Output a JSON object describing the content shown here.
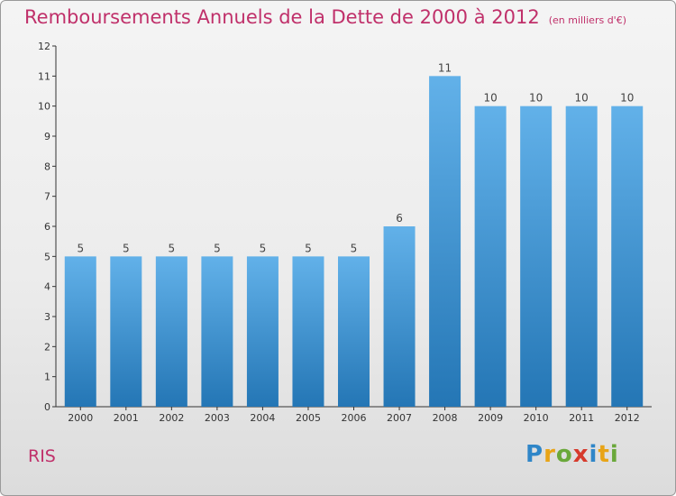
{
  "header": {
    "title": "Remboursements Annuels de la Dette de 2000 à 2012",
    "unit": "(en milliers d'€)"
  },
  "footer": {
    "city": "RIS",
    "logo_letters": [
      "P",
      "r",
      "o",
      "x",
      "i",
      "t",
      "i"
    ],
    "logo_colors": [
      "#2f86c8",
      "#e8a417",
      "#6aa83a",
      "#d63a2c",
      "#2f86c8",
      "#e8a417",
      "#6aa83a"
    ]
  },
  "colors": {
    "accent": "#c0306a",
    "bar_top": "#62b1e9",
    "bar_bottom": "#2476b5",
    "axis": "#333333"
  },
  "chart_data": {
    "type": "bar",
    "title": "Remboursements Annuels de la Dette de 2000 à 2012",
    "categories": [
      "2000",
      "2001",
      "2002",
      "2003",
      "2004",
      "2005",
      "2006",
      "2007",
      "2008",
      "2009",
      "2010",
      "2011",
      "2012"
    ],
    "values": [
      5,
      5,
      5,
      5,
      5,
      5,
      5,
      6,
      11,
      10,
      10,
      10,
      10
    ],
    "data_labels": [
      "5",
      "5",
      "5",
      "5",
      "5",
      "5",
      "5",
      "6",
      "11",
      "10",
      "10",
      "10",
      "10"
    ],
    "y_ticks": [
      0,
      1,
      2,
      3,
      4,
      5,
      6,
      7,
      8,
      9,
      10,
      11,
      12
    ],
    "ylim": [
      0,
      12
    ],
    "grid": false,
    "legend": "none"
  }
}
